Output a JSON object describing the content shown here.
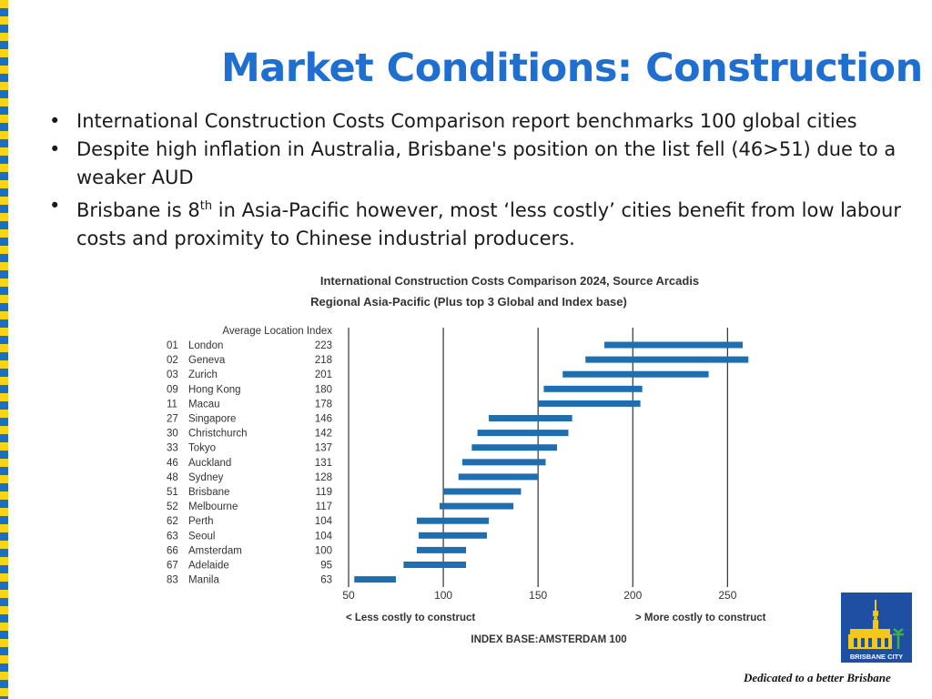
{
  "slide": {
    "title": "Market Conditions: Construction",
    "bullets": [
      {
        "text": "International Construction Costs Comparison report benchmarks 100 global cities"
      },
      {
        "text": "Despite high inflation in Australia, Brisbane's position on the list fell (46>51) due to a weaker AUD"
      },
      {
        "pre": "Brisbane is 8",
        "sup": "th",
        "post": " in Asia-Pacific however, most ‘less costly’ cities benefit from low labour costs and proximity to Chinese industrial producers."
      }
    ],
    "tagline": "Dedicated to a better Brisbane",
    "logo_text": "BRISBANE CITY"
  },
  "chart_data": {
    "type": "bar",
    "title": "International Construction Costs Comparison 2024, Source Arcadis",
    "subtitle": "Regional Asia-Pacific (Plus top 3 Global and Index base)",
    "index_header": "Average Location Index",
    "rows": [
      {
        "rank": "01",
        "city": "London",
        "index": 223,
        "low": 185,
        "high": 258
      },
      {
        "rank": "02",
        "city": "Geneva",
        "index": 218,
        "low": 175,
        "high": 261
      },
      {
        "rank": "03",
        "city": "Zurich",
        "index": 201,
        "low": 163,
        "high": 240
      },
      {
        "rank": "09",
        "city": "Hong Kong",
        "index": 180,
        "low": 153,
        "high": 205
      },
      {
        "rank": "11",
        "city": "Macau",
        "index": 178,
        "low": 150,
        "high": 204
      },
      {
        "rank": "27",
        "city": "Singapore",
        "index": 146,
        "low": 124,
        "high": 168
      },
      {
        "rank": "30",
        "city": "Christchurch",
        "index": 142,
        "low": 118,
        "high": 166
      },
      {
        "rank": "33",
        "city": "Tokyo",
        "index": 137,
        "low": 115,
        "high": 160
      },
      {
        "rank": "46",
        "city": "Auckland",
        "index": 131,
        "low": 110,
        "high": 154
      },
      {
        "rank": "48",
        "city": "Sydney",
        "index": 128,
        "low": 108,
        "high": 150
      },
      {
        "rank": "51",
        "city": "Brisbane",
        "index": 119,
        "low": 100,
        "high": 141
      },
      {
        "rank": "52",
        "city": "Melbourne",
        "index": 117,
        "low": 98,
        "high": 137
      },
      {
        "rank": "62",
        "city": "Perth",
        "index": 104,
        "low": 86,
        "high": 124
      },
      {
        "rank": "63",
        "city": "Seoul",
        "index": 104,
        "low": 87,
        "high": 123
      },
      {
        "rank": "66",
        "city": "Amsterdam",
        "index": 100,
        "low": 86,
        "high": 112
      },
      {
        "rank": "67",
        "city": "Adelaide",
        "index": 95,
        "low": 79,
        "high": 112
      },
      {
        "rank": "83",
        "city": "Manila",
        "index": 63,
        "low": 53,
        "high": 75
      }
    ],
    "xlim": [
      50,
      270
    ],
    "xticks": [
      50,
      100,
      150,
      200,
      250
    ],
    "gridlines": [
      100,
      150,
      200,
      250
    ],
    "bar_color": "#1f6fb0",
    "left_note": "< Less costly to construct",
    "right_note": "> More costly to construct",
    "index_base": "INDEX BASE:AMSTERDAM 100"
  }
}
